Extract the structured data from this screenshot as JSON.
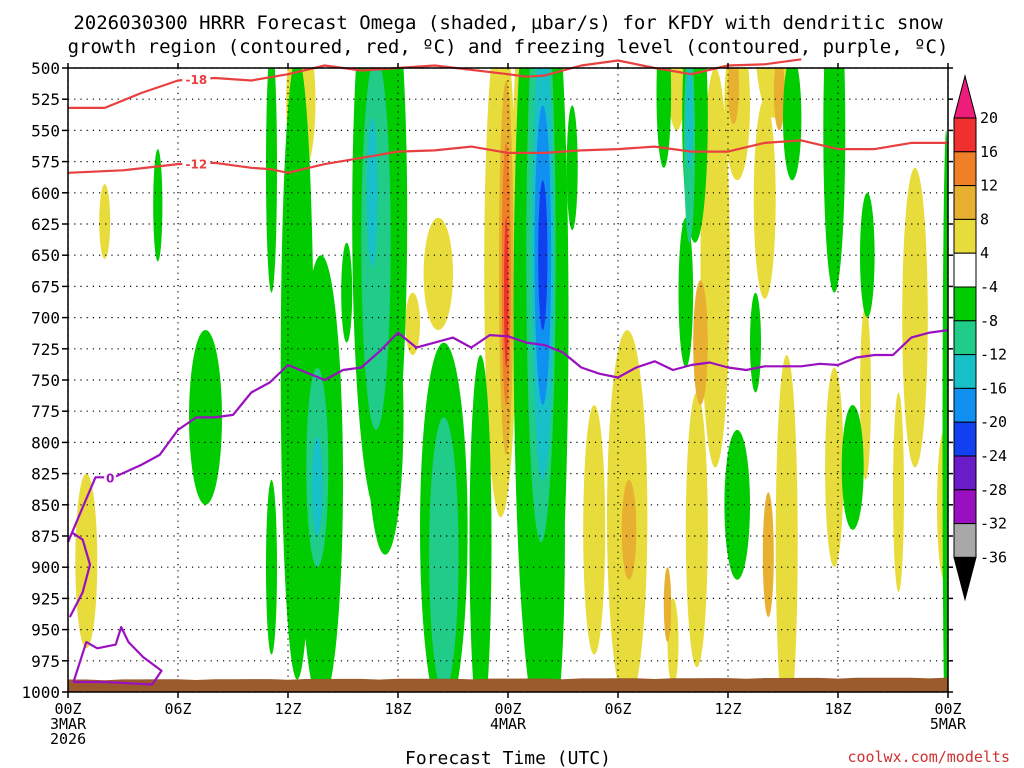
{
  "chart_data": {
    "type": "time-height-section",
    "title_line1": "2026030300 HRRR Forecast Omega (shaded, µbar/s) for KFDY with dendritic snow",
    "title_line2": "growth region (contoured, red, ºC) and freezing level (contoured, purple, ºC)",
    "xlabel": "Forecast Time (UTC)",
    "credit": "coolwx.com/modelts",
    "x_unit": "forecast hour",
    "xlim": [
      0,
      48
    ],
    "y_unit": "hPa",
    "ylim": [
      1000,
      500
    ],
    "y_ticks": [
      "500",
      "525",
      "550",
      "575",
      "600",
      "625",
      "650",
      "675",
      "700",
      "725",
      "750",
      "775",
      "800",
      "825",
      "850",
      "875",
      "900",
      "925",
      "950",
      "975",
      "1000"
    ],
    "x_ticks": [
      {
        "h": 0,
        "line1": "00Z",
        "line2": "3MAR",
        "line3": "2026"
      },
      {
        "h": 6,
        "line1": "06Z",
        "line2": "",
        "line3": ""
      },
      {
        "h": 12,
        "line1": "12Z",
        "line2": "",
        "line3": ""
      },
      {
        "h": 18,
        "line1": "18Z",
        "line2": "",
        "line3": ""
      },
      {
        "h": 24,
        "line1": "00Z",
        "line2": "4MAR",
        "line3": ""
      },
      {
        "h": 30,
        "line1": "06Z",
        "line2": "",
        "line3": ""
      },
      {
        "h": 36,
        "line1": "12Z",
        "line2": "",
        "line3": ""
      },
      {
        "h": 42,
        "line1": "18Z",
        "line2": "",
        "line3": ""
      },
      {
        "h": 48,
        "line1": "00Z",
        "line2": "5MAR",
        "line3": ""
      }
    ],
    "colorbar": {
      "labels": [
        "20",
        "16",
        "12",
        "8",
        "4",
        "-4",
        "-8",
        "-12",
        "-16",
        "-20",
        "-24",
        "-28",
        "-32",
        "-36"
      ],
      "colors": [
        "#f03030",
        "#f08028",
        "#e8b030",
        "#e8dc3c",
        "#ffffff",
        "#00cc00",
        "#20cc88",
        "#18c0c8",
        "#1090f0",
        "#1040f0",
        "#6a1cc8",
        "#9a10c0",
        "#a8a8a8"
      ],
      "top_cap": "#ee1c7a",
      "bottom_cap": "#000000"
    },
    "shaded_omega": [
      {
        "label": "+4",
        "color": "#e8dc3c",
        "cells": [
          {
            "h": 2.0,
            "p": 623,
            "hw": 0.3,
            "dp": 30
          },
          {
            "h": 1.0,
            "p": 895,
            "hw": 0.6,
            "dp": 70
          },
          {
            "h": 12.7,
            "p": 527,
            "hw": 0.8,
            "dp": 60
          },
          {
            "h": 12.2,
            "p": 900,
            "hw": 0.3,
            "dp": 30
          },
          {
            "h": 20.2,
            "p": 665,
            "hw": 0.8,
            "dp": 45
          },
          {
            "h": 18.8,
            "p": 705,
            "hw": 0.4,
            "dp": 25
          },
          {
            "h": 23.6,
            "p": 660,
            "hw": 0.9,
            "dp": 200
          },
          {
            "h": 25.1,
            "p": 640,
            "hw": 0.9,
            "dp": 230
          },
          {
            "h": 28.7,
            "p": 870,
            "hw": 0.6,
            "dp": 100
          },
          {
            "h": 30.5,
            "p": 860,
            "hw": 1.1,
            "dp": 150
          },
          {
            "h": 33.2,
            "p": 480,
            "hw": 0.6,
            "dp": 70
          },
          {
            "h": 33.0,
            "p": 960,
            "hw": 0.3,
            "dp": 35
          },
          {
            "h": 35.3,
            "p": 660,
            "hw": 0.8,
            "dp": 160
          },
          {
            "h": 34.3,
            "p": 870,
            "hw": 0.6,
            "dp": 110
          },
          {
            "h": 36.5,
            "p": 530,
            "hw": 0.7,
            "dp": 60
          },
          {
            "h": 38.0,
            "p": 605,
            "hw": 0.6,
            "dp": 80
          },
          {
            "h": 38.5,
            "p": 480,
            "hw": 1.0,
            "dp": 60
          },
          {
            "h": 39.2,
            "p": 880,
            "hw": 0.6,
            "dp": 150
          },
          {
            "h": 41.8,
            "p": 820,
            "hw": 0.5,
            "dp": 80
          },
          {
            "h": 43.5,
            "p": 760,
            "hw": 0.3,
            "dp": 70
          },
          {
            "h": 45.3,
            "p": 840,
            "hw": 0.3,
            "dp": 80
          },
          {
            "h": 46.2,
            "p": 700,
            "hw": 0.7,
            "dp": 120
          },
          {
            "h": 47.8,
            "p": 850,
            "hw": 0.4,
            "dp": 60
          }
        ]
      },
      {
        "label": "+8",
        "color": "#e8b030",
        "cells": [
          {
            "h": 23.9,
            "p": 660,
            "hw": 0.4,
            "dp": 150
          },
          {
            "h": 25.8,
            "p": 880,
            "hw": 0.3,
            "dp": 40
          },
          {
            "h": 30.6,
            "p": 870,
            "hw": 0.4,
            "dp": 40
          },
          {
            "h": 32.7,
            "p": 930,
            "hw": 0.2,
            "dp": 30
          },
          {
            "h": 34.5,
            "p": 720,
            "hw": 0.4,
            "dp": 50
          },
          {
            "h": 36.3,
            "p": 515,
            "hw": 0.3,
            "dp": 30
          },
          {
            "h": 38.2,
            "p": 890,
            "hw": 0.3,
            "dp": 50
          },
          {
            "h": 38.8,
            "p": 520,
            "hw": 0.3,
            "dp": 30
          }
        ]
      },
      {
        "label": "+12",
        "color": "#f08028",
        "cells": [
          {
            "h": 23.9,
            "p": 665,
            "hw": 0.25,
            "dp": 105
          }
        ]
      },
      {
        "label": "+16",
        "color": "#f03030",
        "cells": [
          {
            "h": 23.9,
            "p": 680,
            "hw": 0.12,
            "dp": 60
          }
        ]
      },
      {
        "label": "-4",
        "color": "#00cc00",
        "cells": [
          {
            "h": 4.9,
            "p": 610,
            "hw": 0.25,
            "dp": 45
          },
          {
            "h": 7.5,
            "p": 780,
            "hw": 0.9,
            "dp": 70
          },
          {
            "h": 12.5,
            "p": 740,
            "hw": 0.9,
            "dp": 250
          },
          {
            "h": 11.1,
            "p": 580,
            "hw": 0.3,
            "dp": 100
          },
          {
            "h": 11.1,
            "p": 900,
            "hw": 0.3,
            "dp": 70
          },
          {
            "h": 13.8,
            "p": 830,
            "hw": 1.2,
            "dp": 180
          },
          {
            "h": 17.0,
            "p": 620,
            "hw": 1.5,
            "dp": 240
          },
          {
            "h": 17.3,
            "p": 780,
            "hw": 1.0,
            "dp": 110
          },
          {
            "h": 15.2,
            "p": 680,
            "hw": 0.3,
            "dp": 40
          },
          {
            "h": 20.5,
            "p": 870,
            "hw": 1.3,
            "dp": 150
          },
          {
            "h": 22.5,
            "p": 880,
            "hw": 0.6,
            "dp": 150
          },
          {
            "h": 25.8,
            "p": 700,
            "hw": 1.5,
            "dp": 330
          },
          {
            "h": 26.3,
            "p": 880,
            "hw": 0.8,
            "dp": 160
          },
          {
            "h": 27.5,
            "p": 580,
            "hw": 0.3,
            "dp": 50
          },
          {
            "h": 32.5,
            "p": 520,
            "hw": 0.4,
            "dp": 60
          },
          {
            "h": 33.7,
            "p": 680,
            "hw": 0.4,
            "dp": 60
          },
          {
            "h": 34.2,
            "p": 540,
            "hw": 0.7,
            "dp": 100
          },
          {
            "h": 36.5,
            "p": 850,
            "hw": 0.7,
            "dp": 60
          },
          {
            "h": 37.5,
            "p": 720,
            "hw": 0.3,
            "dp": 40
          },
          {
            "h": 39.5,
            "p": 540,
            "hw": 0.5,
            "dp": 50
          },
          {
            "h": 41.8,
            "p": 550,
            "hw": 0.6,
            "dp": 130
          },
          {
            "h": 42.8,
            "p": 820,
            "hw": 0.6,
            "dp": 50
          },
          {
            "h": 43.6,
            "p": 650,
            "hw": 0.4,
            "dp": 50
          },
          {
            "h": 47.9,
            "p": 800,
            "hw": 0.2,
            "dp": 250
          }
        ]
      },
      {
        "label": "-8",
        "color": "#20cc88",
        "cells": [
          {
            "h": 13.6,
            "p": 820,
            "hw": 0.6,
            "dp": 80
          },
          {
            "h": 16.8,
            "p": 640,
            "hw": 0.8,
            "dp": 150
          },
          {
            "h": 20.5,
            "p": 890,
            "hw": 0.8,
            "dp": 110
          },
          {
            "h": 25.8,
            "p": 650,
            "hw": 0.8,
            "dp": 230
          },
          {
            "h": 33.9,
            "p": 560,
            "hw": 0.3,
            "dp": 80
          }
        ]
      },
      {
        "label": "-12",
        "color": "#18c0c8",
        "cells": [
          {
            "h": 13.6,
            "p": 835,
            "hw": 0.3,
            "dp": 40
          },
          {
            "h": 16.6,
            "p": 600,
            "hw": 0.3,
            "dp": 60
          },
          {
            "h": 25.9,
            "p": 650,
            "hw": 0.6,
            "dp": 180
          },
          {
            "h": 33.9,
            "p": 540,
            "hw": 0.2,
            "dp": 40
          }
        ]
      },
      {
        "label": "-16",
        "color": "#1090f0",
        "cells": [
          {
            "h": 25.9,
            "p": 650,
            "hw": 0.45,
            "dp": 120
          }
        ]
      },
      {
        "label": "-20",
        "color": "#1040f0",
        "cells": [
          {
            "h": 25.9,
            "p": 650,
            "hw": 0.25,
            "dp": 60
          }
        ]
      }
    ],
    "dgz_contours": [
      {
        "label": "-18",
        "color": "#e84040",
        "label_h": 7.0,
        "points": [
          [
            0,
            532
          ],
          [
            2,
            532
          ],
          [
            4,
            520
          ],
          [
            6,
            510
          ],
          [
            8,
            508
          ],
          [
            10,
            510
          ],
          [
            12,
            505
          ],
          [
            14,
            498
          ],
          [
            16,
            502
          ],
          [
            18,
            500
          ],
          [
            20,
            498
          ],
          [
            24,
            505
          ],
          [
            25,
            507
          ],
          [
            26,
            506
          ],
          [
            28,
            498
          ],
          [
            30,
            494
          ],
          [
            32,
            500
          ],
          [
            34,
            505
          ],
          [
            36,
            498
          ],
          [
            38,
            497
          ],
          [
            40,
            493
          ]
        ]
      },
      {
        "label": "-12",
        "color": "#e84040",
        "label_h": 7.0,
        "points": [
          [
            0,
            584
          ],
          [
            3,
            582
          ],
          [
            6,
            577
          ],
          [
            8,
            576
          ],
          [
            10,
            580
          ],
          [
            11,
            581
          ],
          [
            12,
            584
          ],
          [
            14,
            577
          ],
          [
            16,
            572
          ],
          [
            18,
            567
          ],
          [
            20,
            566
          ],
          [
            22,
            563
          ],
          [
            24,
            568
          ],
          [
            26,
            568
          ],
          [
            28,
            566
          ],
          [
            30,
            565
          ],
          [
            32,
            563
          ],
          [
            34,
            567
          ],
          [
            36,
            567
          ],
          [
            38,
            560
          ],
          [
            40,
            558
          ],
          [
            42,
            565
          ],
          [
            44,
            565
          ],
          [
            46,
            560
          ],
          [
            48,
            560
          ]
        ]
      }
    ],
    "freezing_level": [
      {
        "label": "0",
        "color": "#9a10c0",
        "label_h": 2.3,
        "points": [
          [
            0,
            880
          ],
          [
            0.8,
            852
          ],
          [
            1.5,
            828
          ],
          [
            2.5,
            828
          ],
          [
            4,
            818
          ],
          [
            5,
            810
          ],
          [
            6,
            790
          ],
          [
            7,
            780
          ],
          [
            8,
            780
          ],
          [
            9,
            778
          ],
          [
            10,
            760
          ],
          [
            11,
            752
          ],
          [
            12,
            738
          ],
          [
            13,
            744
          ],
          [
            14,
            750
          ],
          [
            15,
            742
          ],
          [
            16,
            740
          ],
          [
            17,
            727
          ],
          [
            18,
            712
          ],
          [
            19,
            724
          ],
          [
            20,
            720
          ],
          [
            21,
            716
          ],
          [
            22,
            724
          ],
          [
            23,
            714
          ],
          [
            24,
            715
          ],
          [
            25,
            720
          ],
          [
            26,
            722
          ],
          [
            27,
            728
          ],
          [
            28,
            740
          ],
          [
            29,
            745
          ],
          [
            30,
            748
          ],
          [
            31,
            740
          ],
          [
            32,
            735
          ],
          [
            33,
            742
          ],
          [
            34,
            738
          ],
          [
            35,
            736
          ],
          [
            36,
            740
          ],
          [
            37,
            742
          ],
          [
            38,
            739
          ],
          [
            40,
            739
          ],
          [
            41,
            737
          ],
          [
            42,
            738
          ],
          [
            43,
            732
          ],
          [
            44,
            730
          ],
          [
            45,
            730
          ],
          [
            46,
            716
          ],
          [
            47,
            712
          ],
          [
            48,
            710
          ]
        ]
      },
      {
        "label": "",
        "color": "#9a10c0",
        "label_h": -1,
        "points": [
          [
            0.1,
            940
          ],
          [
            0.8,
            920
          ],
          [
            1.2,
            898
          ],
          [
            0.8,
            878
          ],
          [
            0.2,
            872
          ]
        ]
      },
      {
        "label": "",
        "color": "#9a10c0",
        "label_h": -1,
        "points": [
          [
            0.3,
            992
          ],
          [
            1,
            960
          ],
          [
            1.6,
            965
          ],
          [
            2.6,
            962
          ],
          [
            2.9,
            948
          ],
          [
            3.3,
            960
          ],
          [
            4.1,
            972
          ],
          [
            5.1,
            983
          ],
          [
            4.6,
            994
          ],
          [
            2,
            992
          ],
          [
            0.3,
            992
          ]
        ]
      }
    ],
    "terrain": {
      "label": "ground",
      "color": "#9b5a2c",
      "surface_p": 990
    }
  }
}
